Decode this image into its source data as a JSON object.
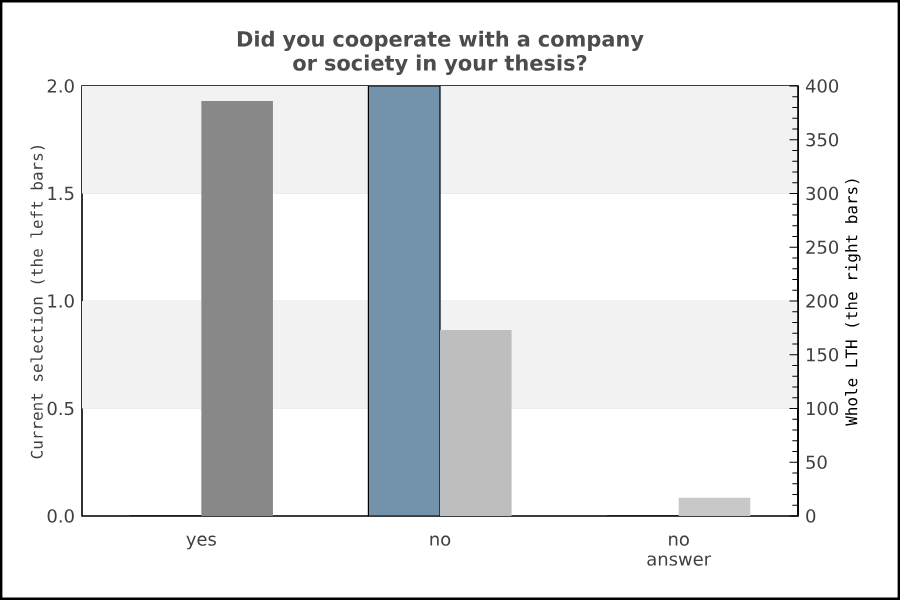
{
  "chart_data": {
    "type": "bar",
    "title": "Did you cooperate with a company or society in your thesis?",
    "categories": [
      "yes",
      "no",
      "no answer"
    ],
    "series": [
      {
        "values": [
          0,
          2,
          0
        ],
        "colors": [
          "#7393ad",
          "#7393ad",
          "#7393ad"
        ],
        "axis": "y"
      },
      {
        "values": [
          386,
          173,
          17
        ],
        "colors": [
          "#888888",
          "#bebebe",
          "#c8c8c8"
        ],
        "axis": "y2"
      }
    ],
    "ylabel": "Current selection (the left bars)",
    "y2label": "Whole LTH (the right bars)",
    "ylim": [
      0,
      2
    ],
    "yticks": [
      {
        "value": 0,
        "label": "0.0"
      },
      {
        "value": 0.5,
        "label": "0.5"
      },
      {
        "value": 1,
        "label": "1.0"
      },
      {
        "value": 1.5,
        "label": "1.5"
      },
      {
        "value": 2,
        "label": "2.0"
      }
    ],
    "y2lim": [
      0,
      400
    ],
    "y2ticks": [
      0,
      50,
      100,
      150,
      200,
      250,
      300,
      350,
      400
    ],
    "grid": "y",
    "bands": [
      {
        "axis": "y",
        "from": 0.5,
        "to": 1.0,
        "color": "#f2f2f2"
      },
      {
        "axis": "y",
        "from": 1.5,
        "to": 2.0,
        "color": "#f2f2f2"
      }
    ]
  }
}
